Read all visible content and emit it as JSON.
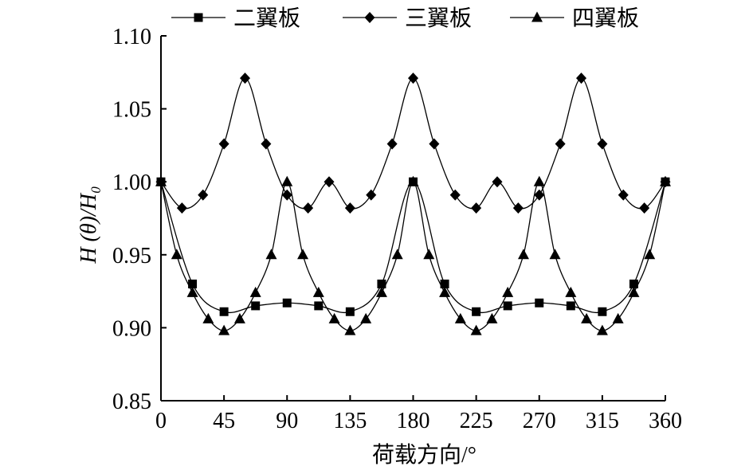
{
  "chart_data": {
    "type": "line",
    "xlabel": "荷载方向/°",
    "ylabel": "H (θ)/H₀",
    "xlim": [
      0,
      360
    ],
    "ylim": [
      0.85,
      1.1
    ],
    "x_ticks": [
      "0",
      "45",
      "90",
      "135",
      "180",
      "225",
      "270",
      "315",
      "360"
    ],
    "y_ticks": [
      "0.85",
      "0.90",
      "0.95",
      "1.00",
      "1.05",
      "1.10"
    ],
    "grid": false,
    "legend_position": "top",
    "series": [
      {
        "name": "二翼板",
        "marker": "square",
        "x": [
          0,
          22.5,
          45,
          67.5,
          90,
          112.5,
          135,
          157.5,
          180,
          202.5,
          225,
          247.5,
          270,
          292.5,
          315,
          337.5,
          360
        ],
        "y": [
          1.0,
          0.93,
          0.911,
          0.915,
          0.917,
          0.915,
          0.911,
          0.93,
          1.0,
          0.93,
          0.911,
          0.915,
          0.917,
          0.915,
          0.911,
          0.93,
          1.0
        ]
      },
      {
        "name": "三翼板",
        "marker": "diamond",
        "x": [
          0,
          15,
          30,
          45,
          60,
          75,
          90,
          105,
          120,
          135,
          150,
          165,
          180,
          195,
          210,
          225,
          240,
          255,
          270,
          285,
          300,
          315,
          330,
          345,
          360
        ],
        "y": [
          1.0,
          0.982,
          0.991,
          1.026,
          1.071,
          1.026,
          0.991,
          0.982,
          1.0,
          0.982,
          0.991,
          1.026,
          1.071,
          1.026,
          0.991,
          0.982,
          1.0,
          0.982,
          0.991,
          1.026,
          1.071,
          1.026,
          0.991,
          0.982,
          1.0
        ]
      },
      {
        "name": "四翼板",
        "marker": "triangle",
        "x": [
          0,
          11.25,
          22.5,
          33.75,
          45,
          56.25,
          67.5,
          78.75,
          90,
          101.25,
          112.5,
          123.75,
          135,
          146.25,
          157.5,
          168.75,
          180,
          191.25,
          202.5,
          213.75,
          225,
          236.25,
          247.5,
          258.75,
          270,
          281.25,
          292.5,
          303.75,
          315,
          326.25,
          337.5,
          348.75,
          360
        ],
        "y": [
          1.0,
          0.95,
          0.924,
          0.906,
          0.898,
          0.906,
          0.924,
          0.95,
          1.0,
          0.95,
          0.924,
          0.906,
          0.898,
          0.906,
          0.924,
          0.95,
          1.0,
          0.95,
          0.924,
          0.906,
          0.898,
          0.906,
          0.924,
          0.95,
          1.0,
          0.95,
          0.924,
          0.906,
          0.898,
          0.906,
          0.924,
          0.95,
          1.0
        ]
      }
    ]
  }
}
